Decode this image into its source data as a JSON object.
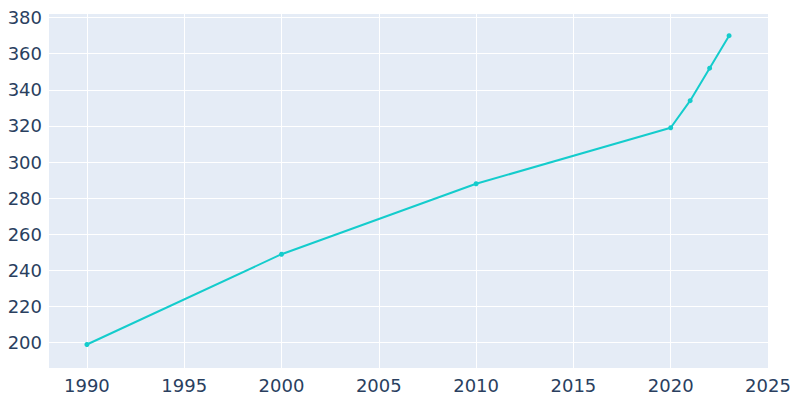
{
  "chart_data": {
    "type": "line",
    "x": [
      1990,
      2000,
      2010,
      2020,
      2021,
      2022,
      2023
    ],
    "values": [
      199,
      249,
      288,
      319,
      334,
      352,
      370
    ],
    "color": "#14cccc",
    "marker": "circle",
    "xlim": [
      1988,
      2025
    ],
    "xticks": [
      1990,
      1995,
      2000,
      2005,
      2010,
      2015,
      2020,
      2025
    ],
    "ylim": [
      186,
      382
    ],
    "yticks": [
      200,
      220,
      240,
      260,
      280,
      300,
      320,
      340,
      360,
      380
    ],
    "grid": true
  }
}
